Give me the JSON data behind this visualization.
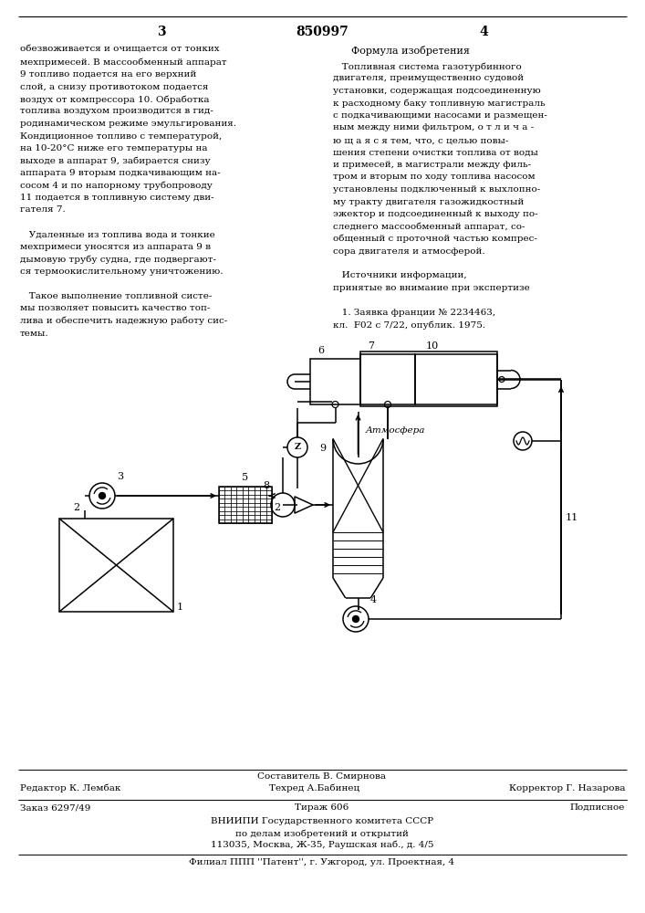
{
  "page_number_left": "3",
  "page_number_center": "850997",
  "page_number_right": "4",
  "left_column_lines": [
    "обезвоживается и очищается от тонких",
    "мехпримесей. В массообменный аппарат",
    "9 топливо подается на его верхний",
    "слой, а снизу противотоком подается",
    "воздух от компрессора 10. Обработка",
    "топлива воздухом производится в гид-",
    "родинамическом режиме эмульгирования.",
    "Кондиционное топливо с температурой,",
    "на 10-20°С ниже его температуры на",
    "выходе в аппарат 9, забирается снизу",
    "аппарата 9 вторым подкачивающим на-",
    "сосом 4 и по напорному трубопроводу",
    "11 подается в топливную систему дви-",
    "гателя 7.",
    "",
    "   Удаленные из топлива вода и тонкие",
    "мехпримеси уносятся из аппарата 9 в",
    "дымовую трубу судна, где подвергают-",
    "ся термоокислительному уничтожению.",
    "",
    "   Такое выполнение топливной систе-",
    "мы позволяет повысить качество топ-",
    "лива и обеспечить надежную работу сис-",
    "темы."
  ],
  "right_column_header": "Формула изобретения",
  "right_column_lines": [
    "   Топливная система газотурбинного",
    "двигателя, преимущественно судовой",
    "установки, содержащая подсоединенную",
    "к расходному баку топливную магистраль",
    "с подкачивающими насосами и размещен-",
    "ным между ними фильтром, о т л и ч а -",
    "ю щ а я с я тем, что, с целью повы-",
    "шения степени очистки топлива от воды",
    "и примесей, в магистрали между филь-",
    "тром и вторым по ходу топлива насосом",
    "установлены подключенный к выхлопно-",
    "му тракту двигателя газожидкостный",
    "эжектор и подсоединенный к выходу по-",
    "следнего массообменный аппарат, со-",
    "общенный с проточной частью компрес-",
    "сора двигателя и атмосферой.",
    "",
    "   Источники информации,",
    "принятые во внимание при экспертизе",
    "",
    "   1. Заявка франции № 2234463,",
    "кл.  F02 с 7/22, опублик. 1975."
  ],
  "footer_composer": "Составитель В. Смирнова",
  "footer_editor": "Редактор К. Лембак",
  "footer_techred": "Техред А.Бабинец",
  "footer_corrector": "Корректор Г. Назарова",
  "footer_order": "Заказ 6297/49",
  "footer_print": "Тираж 606",
  "footer_signed": "Подписное",
  "footer_org1": "ВНИИПИ Государственного комитета СССР",
  "footer_org2": "по делам изобретений и открытий",
  "footer_addr": "113035, Москва, Ж-35, Раушская наб., д. 4/5",
  "footer_branch": "Филиал ППП ''Патент'', г. Ужгород, ул. Проектная, 4",
  "bg_color": "#ffffff",
  "text_color": "#000000",
  "note_5": "5",
  "note_3": "3",
  "note_2a": "2",
  "note_2b": "2",
  "note_1": "1",
  "note_8": "8",
  "note_9": "9",
  "note_6": "6",
  "note_7": "7",
  "note_10": "10",
  "note_z": "Z",
  "note_atm": "Атмосфера",
  "note_4": "4",
  "note_11": "11"
}
